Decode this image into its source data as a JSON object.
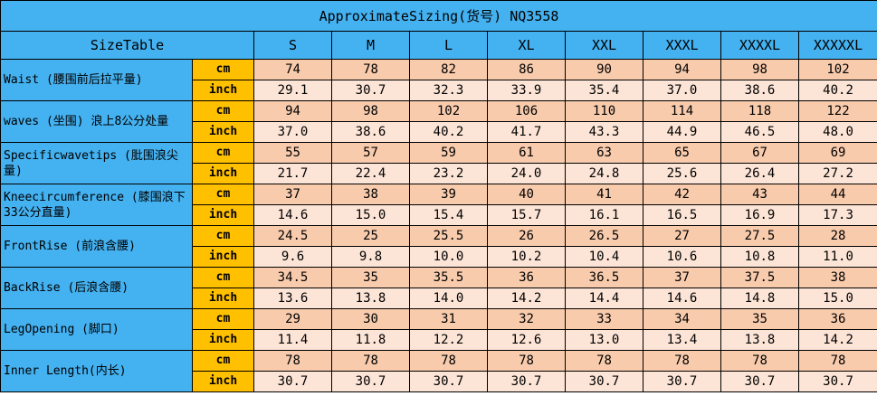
{
  "title": "ApproximateSizing(货号) NQ3558",
  "header": {
    "label": "SizeTable",
    "sizes": [
      "S",
      "M",
      "L",
      "XL",
      "XXL",
      "XXXL",
      "XXXXL",
      "XXXXXL"
    ]
  },
  "rows": [
    {
      "label": "Waist (腰围前后拉平量)",
      "cm_unit": "cm",
      "cm": [
        "74",
        "78",
        "82",
        "86",
        "90",
        "94",
        "98",
        "102"
      ],
      "inch_unit": "inch",
      "inch": [
        "29.1",
        "30.7",
        "32.3",
        "33.9",
        "35.4",
        "37.0",
        "38.6",
        "40.2"
      ]
    },
    {
      "label": "waves (坐围) 浪上8公分处量",
      "cm_unit": "cm",
      "cm": [
        "94",
        "98",
        "102",
        "106",
        "110",
        "114",
        "118",
        "122"
      ],
      "inch_unit": "inch",
      "inch": [
        "37.0",
        "38.6",
        "40.2",
        "41.7",
        "43.3",
        "44.9",
        "46.5",
        "48.0"
      ]
    },
    {
      "label": "Specificwavetips (肶围浪尖量)",
      "cm_unit": "cm",
      "cm": [
        "55",
        "57",
        "59",
        "61",
        "63",
        "65",
        "67",
        "69"
      ],
      "inch_unit": "inch",
      "inch": [
        "21.7",
        "22.4",
        "23.2",
        "24.0",
        "24.8",
        "25.6",
        "26.4",
        "27.2"
      ]
    },
    {
      "label": "Kneecircumference (膝围浪下33公分直量)",
      "cm_unit": "cm",
      "cm": [
        "37",
        "38",
        "39",
        "40",
        "41",
        "42",
        "43",
        "44"
      ],
      "inch_unit": "inch",
      "inch": [
        "14.6",
        "15.0",
        "15.4",
        "15.7",
        "16.1",
        "16.5",
        "16.9",
        "17.3"
      ]
    },
    {
      "label": "FrontRise (前浪含腰)",
      "cm_unit": "cm",
      "cm": [
        "24.5",
        "25",
        "25.5",
        "26",
        "26.5",
        "27",
        "27.5",
        "28"
      ],
      "inch_unit": "inch",
      "inch": [
        "9.6",
        "9.8",
        "10.0",
        "10.2",
        "10.4",
        "10.6",
        "10.8",
        "11.0"
      ]
    },
    {
      "label": "BackRise (后浪含腰)",
      "cm_unit": "cm",
      "cm": [
        "34.5",
        "35",
        "35.5",
        "36",
        "36.5",
        "37",
        "37.5",
        "38"
      ],
      "inch_unit": "inch",
      "inch": [
        "13.6",
        "13.8",
        "14.0",
        "14.2",
        "14.4",
        "14.6",
        "14.8",
        "15.0"
      ]
    },
    {
      "label": "LegOpening (脚口)",
      "cm_unit": "cm",
      "cm": [
        "29",
        "30",
        "31",
        "32",
        "33",
        "34",
        "35",
        "36"
      ],
      "inch_unit": "inch",
      "inch": [
        "11.4",
        "11.8",
        "12.2",
        "12.6",
        "13.0",
        "13.4",
        "13.8",
        "14.2"
      ]
    },
    {
      "label": "Inner Length(内长)",
      "cm_unit": "cm",
      "cm": [
        "78",
        "78",
        "78",
        "78",
        "78",
        "78",
        "78",
        "78"
      ],
      "inch_unit": "inch",
      "inch": [
        "30.7",
        "30.7",
        "30.7",
        "30.7",
        "30.7",
        "30.7",
        "30.7",
        "30.7"
      ]
    }
  ],
  "colors": {
    "header_blue": "#44b1f0",
    "unit_yellow": "#ffc000",
    "cm_row": "#f8cbad",
    "inch_row": "#fce4d6"
  }
}
